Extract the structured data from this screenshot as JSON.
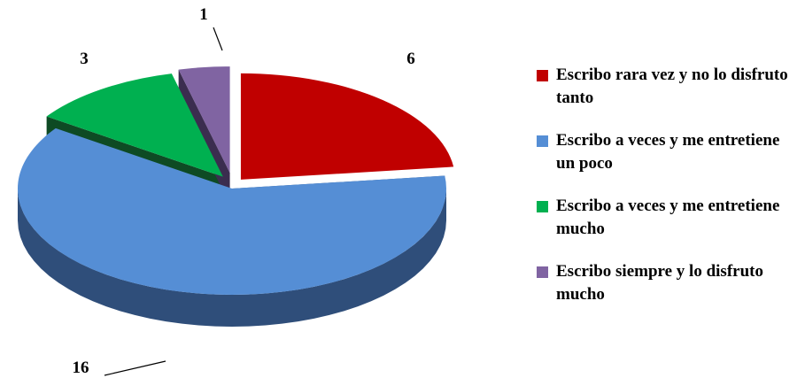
{
  "chart_data": {
    "type": "pie",
    "categories": [
      "Escribo rara vez y no lo disfruto tanto",
      "Escribo a veces y me entretiene un poco",
      "Escribo a veces y me entretiene mucho",
      "Escribo siempre y lo disfruto mucho"
    ],
    "values": [
      6,
      16,
      3,
      1
    ],
    "data_labels": [
      "6",
      "16",
      "3",
      "1"
    ],
    "colors": [
      "#C00000",
      "#558ED5",
      "#00B050",
      "#8064A2"
    ],
    "side_colors": [
      "#5A0000",
      "#2F4E7A",
      "#0E4A24",
      "#3B2D4F"
    ],
    "exploded": true,
    "three_d": true,
    "legend_position": "right"
  }
}
